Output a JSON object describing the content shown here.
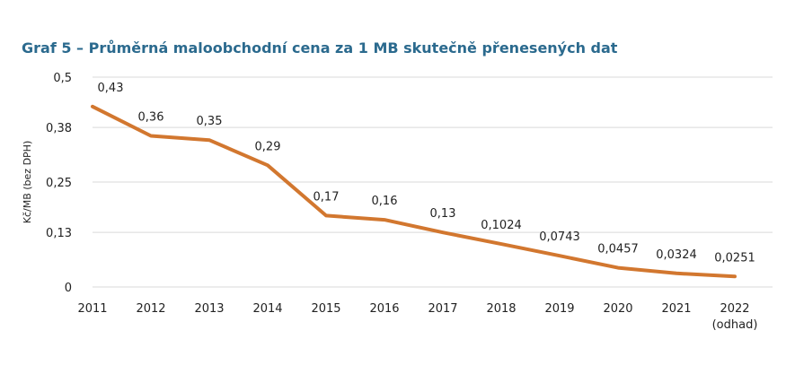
{
  "chart_data": {
    "type": "line",
    "title": "Graf 5 – Průměrná maloobchodní cena za 1 MB skutečně přenesených dat",
    "ylabel": "Kč/MB (bez DPH)",
    "xlabel": "",
    "categories": [
      "2011",
      "2012",
      "2013",
      "2014",
      "2015",
      "2016",
      "2017",
      "2018",
      "2019",
      "2020",
      "2021",
      "2022"
    ],
    "category_sublabels": [
      "",
      "",
      "",
      "",
      "",
      "",
      "",
      "",
      "",
      "",
      "",
      "(odhad)"
    ],
    "series": [
      {
        "values": [
          0.43,
          0.36,
          0.35,
          0.29,
          0.17,
          0.16,
          0.13,
          0.1024,
          0.0743,
          0.0457,
          0.0324,
          0.0251
        ],
        "data_labels": [
          "0,43",
          "0,36",
          "0,35",
          "0,29",
          "0,17",
          "0,16",
          "0,13",
          "0,1024",
          "0,0743",
          "0,0457",
          "0,0324",
          "0,0251"
        ],
        "color": "#d2772f"
      }
    ],
    "ylim": [
      0,
      0.5
    ],
    "yticks": [
      0,
      0.13,
      0.25,
      0.38,
      0.5
    ],
    "ytick_labels": [
      "0",
      "0,13",
      "0,25",
      "0,38",
      "0,5"
    ],
    "grid": true,
    "gridline_color": "#d9d9d9"
  }
}
